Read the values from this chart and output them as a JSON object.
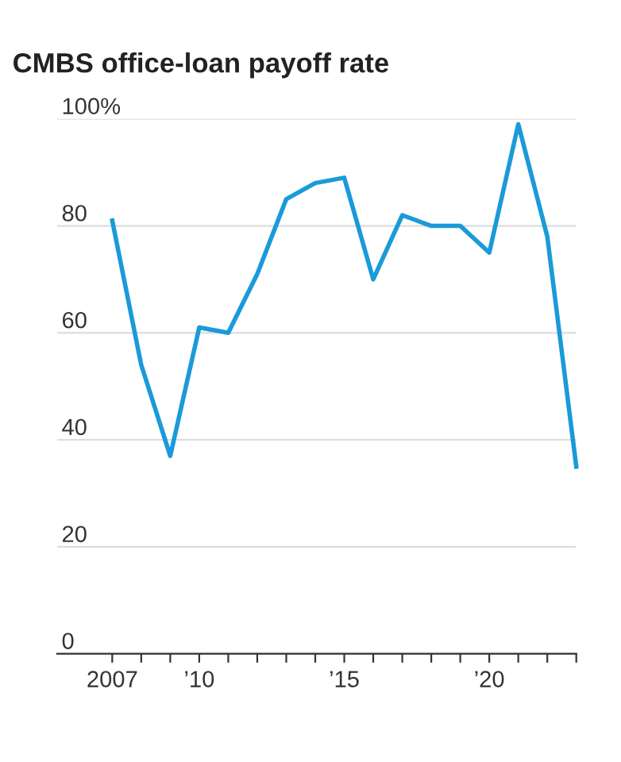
{
  "chart_data": {
    "type": "line",
    "title": "CMBS office-loan payoff rate",
    "x": [
      2007,
      2008,
      2009,
      2010,
      2011,
      2012,
      2013,
      2014,
      2015,
      2016,
      2017,
      2018,
      2019,
      2020,
      2021,
      2022,
      2023
    ],
    "series": [
      {
        "color": "#1a9ad9",
        "values": [
          81,
          54,
          37,
          61,
          60,
          71,
          85,
          88,
          89,
          70,
          82,
          80,
          80,
          75,
          99,
          78,
          35
        ]
      }
    ],
    "xlim": [
      2005.1,
      2023
    ],
    "xticks": [
      {
        "value": 2007,
        "label": "2007"
      },
      {
        "value": 2008,
        "label": null
      },
      {
        "value": 2009,
        "label": null
      },
      {
        "value": 2010,
        "label": "’10"
      },
      {
        "value": 2011,
        "label": null
      },
      {
        "value": 2012,
        "label": null
      },
      {
        "value": 2013,
        "label": null
      },
      {
        "value": 2014,
        "label": null
      },
      {
        "value": 2015,
        "label": "’15"
      },
      {
        "value": 2016,
        "label": null
      },
      {
        "value": 2017,
        "label": null
      },
      {
        "value": 2018,
        "label": null
      },
      {
        "value": 2019,
        "label": null
      },
      {
        "value": 2020,
        "label": "’20"
      },
      {
        "value": 2021,
        "label": null
      },
      {
        "value": 2022,
        "label": null
      },
      {
        "value": 2023,
        "label": null
      }
    ],
    "ylim": [
      0,
      100
    ],
    "yticks": [
      0,
      20,
      40,
      60,
      80,
      {
        "value": 100,
        "label": "100%"
      }
    ],
    "grid": "y",
    "legend": false,
    "marker": "none",
    "line_style": "solid"
  }
}
